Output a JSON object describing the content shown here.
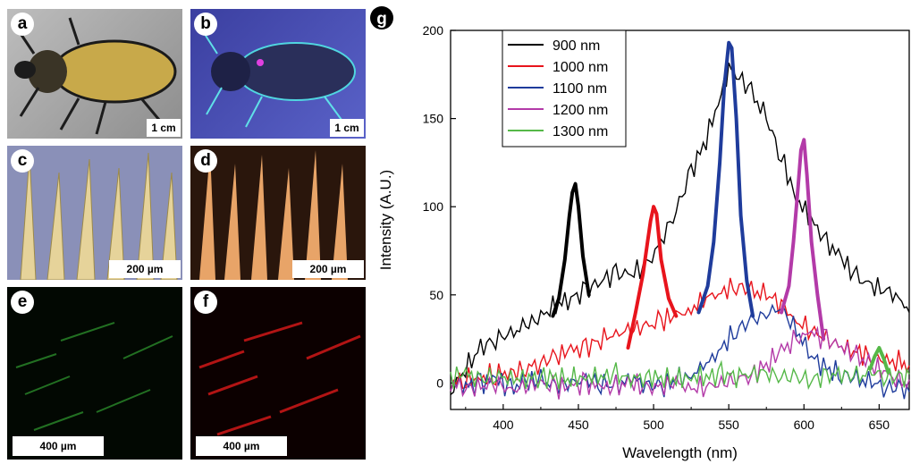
{
  "panels": {
    "a": {
      "label": "a",
      "scale": "1 cm"
    },
    "b": {
      "label": "b",
      "scale": "1 cm"
    },
    "c": {
      "label": "c",
      "scale": "200 µm"
    },
    "d": {
      "label": "d",
      "scale": "200 µm"
    },
    "e": {
      "label": "e",
      "scale": "400 µm"
    },
    "f": {
      "label": "f",
      "scale": "400 µm"
    },
    "g": {
      "label": "g"
    }
  },
  "colors": {
    "black": "#000000",
    "red": "#e8141c",
    "blue": "#1f3c9c",
    "magenta": "#b33aa8",
    "green": "#55b848"
  },
  "chart_data": {
    "type": "line",
    "title": "",
    "xlabel": "Wavelength (nm)",
    "ylabel": "Intensity (A.U.)",
    "xlim": [
      365,
      670
    ],
    "ylim": [
      -15,
      200
    ],
    "x_ticks": [
      400,
      450,
      500,
      550,
      600,
      650
    ],
    "y_ticks": [
      0,
      50,
      100,
      150,
      200
    ],
    "grid": false,
    "legend_position": "top-left",
    "series": [
      {
        "name": "900 nm",
        "color": "#000000",
        "x": [
          365,
          375,
          385,
          395,
          405,
          415,
          425,
          435,
          445,
          455,
          465,
          475,
          485,
          495,
          505,
          515,
          525,
          535,
          545,
          550,
          555,
          565,
          575,
          585,
          595,
          605,
          615,
          625,
          635,
          645,
          655,
          665,
          670
        ],
        "y": [
          -5,
          8,
          20,
          25,
          28,
          32,
          38,
          44,
          48,
          52,
          58,
          62,
          62,
          66,
          80,
          98,
          120,
          138,
          165,
          178,
          175,
          165,
          150,
          128,
          105,
          92,
          80,
          70,
          60,
          55,
          52,
          48,
          40
        ]
      },
      {
        "name": "1000 nm",
        "color": "#e8141c",
        "x": [
          365,
          375,
          385,
          395,
          405,
          415,
          425,
          435,
          445,
          455,
          465,
          475,
          485,
          495,
          505,
          515,
          525,
          535,
          545,
          555,
          565,
          575,
          585,
          595,
          605,
          615,
          625,
          635,
          645,
          655,
          665,
          670
        ],
        "y": [
          0,
          2,
          3,
          5,
          6,
          8,
          12,
          15,
          18,
          20,
          25,
          28,
          30,
          32,
          35,
          38,
          42,
          48,
          52,
          55,
          52,
          50,
          45,
          35,
          30,
          25,
          20,
          18,
          15,
          12,
          12,
          10
        ]
      },
      {
        "name": "1100 nm",
        "color": "#1f3c9c",
        "x": [
          365,
          375,
          385,
          395,
          405,
          415,
          425,
          435,
          445,
          455,
          465,
          475,
          485,
          495,
          505,
          515,
          525,
          535,
          545,
          555,
          565,
          575,
          585,
          595,
          605,
          615,
          625,
          635,
          645,
          655,
          665,
          670
        ],
        "y": [
          0,
          -2,
          0,
          2,
          -3,
          0,
          2,
          -2,
          0,
          2,
          0,
          -2,
          2,
          0,
          -3,
          2,
          5,
          10,
          20,
          30,
          35,
          40,
          42,
          30,
          15,
          8,
          5,
          2,
          0,
          -2,
          -3,
          -5
        ]
      },
      {
        "name": "1200 nm",
        "color": "#b33aa8",
        "x": [
          365,
          375,
          385,
          395,
          405,
          415,
          425,
          435,
          445,
          455,
          465,
          475,
          485,
          495,
          505,
          515,
          525,
          535,
          545,
          555,
          565,
          575,
          585,
          595,
          605,
          615,
          625,
          635,
          645,
          655,
          665,
          670
        ],
        "y": [
          0,
          -3,
          -2,
          0,
          -4,
          -2,
          0,
          -3,
          -2,
          0,
          -3,
          -2,
          0,
          -3,
          -2,
          0,
          -3,
          -2,
          0,
          2,
          5,
          10,
          18,
          25,
          28,
          25,
          20,
          15,
          10,
          5,
          0,
          2
        ]
      },
      {
        "name": "1300 nm",
        "color": "#55b848",
        "x": [
          365,
          375,
          385,
          395,
          405,
          415,
          425,
          435,
          445,
          455,
          465,
          475,
          485,
          495,
          505,
          515,
          525,
          535,
          545,
          555,
          565,
          575,
          585,
          595,
          605,
          615,
          625,
          635,
          645,
          655,
          665,
          670
        ],
        "y": [
          3,
          5,
          2,
          4,
          3,
          2,
          4,
          3,
          2,
          4,
          3,
          5,
          2,
          4,
          3,
          2,
          4,
          3,
          5,
          4,
          6,
          5,
          4,
          3,
          2,
          4,
          5,
          3,
          6,
          4,
          3,
          5
        ]
      }
    ],
    "peaks": [
      {
        "color": "#000000",
        "x": [
          433,
          437,
          441,
          444,
          446,
          448,
          450,
          453,
          457
        ],
        "y": [
          38,
          48,
          70,
          95,
          108,
          113,
          100,
          72,
          50
        ]
      },
      {
        "color": "#e8141c",
        "x": [
          483,
          488,
          493,
          496,
          498,
          500,
          502,
          505,
          510,
          515
        ],
        "y": [
          20,
          40,
          62,
          80,
          92,
          100,
          96,
          70,
          48,
          38
        ]
      },
      {
        "color": "#1f3c9c",
        "x": [
          530,
          536,
          540,
          544,
          547,
          550,
          552,
          555,
          558,
          562,
          566
        ],
        "y": [
          40,
          55,
          80,
          125,
          168,
          193,
          190,
          150,
          95,
          58,
          38
        ]
      },
      {
        "color": "#b33aa8",
        "x": [
          585,
          590,
          593,
          596,
          598,
          600,
          602,
          605,
          609,
          613
        ],
        "y": [
          40,
          55,
          80,
          110,
          132,
          138,
          118,
          80,
          50,
          25
        ]
      },
      {
        "color": "#55b848",
        "x": [
          644,
          647,
          650,
          653,
          656
        ],
        "y": [
          8,
          15,
          20,
          14,
          6
        ]
      }
    ]
  }
}
